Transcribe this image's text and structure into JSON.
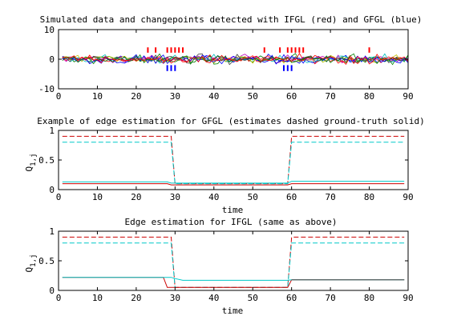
{
  "chart_data": [
    {
      "type": "line",
      "title": "Simulated data and changepoints detected with IFGL (red) and GFGL (blue)",
      "xlabel": "",
      "ylabel": "",
      "xlim": [
        0,
        90
      ],
      "ylim": [
        -10,
        10
      ],
      "xticks": [
        0,
        10,
        20,
        30,
        40,
        50,
        60,
        70,
        80,
        90
      ],
      "yticks": [
        -10,
        0,
        10
      ],
      "ytick_labels": [
        "-10",
        "0",
        "10"
      ],
      "n_noise_series": 10,
      "series_colors": [
        "#0000ff",
        "#008000",
        "#ff0000",
        "#00bfbf",
        "#bf00bf",
        "#bfbf00",
        "#404040",
        "#0000ff",
        "#008000",
        "#ff0000"
      ],
      "ifgl_changepoints": [
        23,
        25,
        28,
        29,
        30,
        31,
        32,
        53,
        57,
        59,
        60,
        61,
        62,
        63,
        80
      ],
      "gfgl_changepoints": [
        28,
        29,
        30,
        58,
        59,
        60
      ],
      "ifgl_color": "#ff0000",
      "gfgl_color": "#0000ff"
    },
    {
      "type": "line",
      "title": "Example of edge estimation for GFGL (estimates dashed ground-truth solid)",
      "xlabel": "time",
      "ylabel": "Q_{1,j}",
      "ylabel_main": "Q",
      "ylabel_sub": "1,j",
      "xlim": [
        0,
        90
      ],
      "ylim": [
        0,
        1
      ],
      "xticks": [
        0,
        10,
        20,
        30,
        40,
        50,
        60,
        70,
        80,
        90
      ],
      "yticks": [
        0,
        0.5,
        1
      ],
      "ytick_labels": [
        "0",
        "0.5",
        "1"
      ],
      "series": [
        {
          "style": "dashed",
          "color": "#cc0000",
          "x": [
            1,
            29,
            30,
            59,
            60,
            89
          ],
          "y": [
            0.9,
            0.9,
            0.1,
            0.1,
            0.9,
            0.9
          ]
        },
        {
          "style": "dashed",
          "color": "#00c8c8",
          "x": [
            1,
            29,
            30,
            59,
            60,
            89
          ],
          "y": [
            0.8,
            0.8,
            0.1,
            0.1,
            0.8,
            0.8
          ]
        },
        {
          "style": "solid",
          "color": "#cc0000",
          "x": [
            1,
            28,
            29,
            30,
            59,
            60,
            89
          ],
          "y": [
            0.1,
            0.1,
            0.08,
            0.08,
            0.08,
            0.1,
            0.1
          ]
        },
        {
          "style": "solid",
          "color": "#00c8c8",
          "x": [
            1,
            28,
            29,
            30,
            59,
            60,
            89
          ],
          "y": [
            0.13,
            0.13,
            0.11,
            0.11,
            0.11,
            0.14,
            0.14
          ]
        }
      ]
    },
    {
      "type": "line",
      "title": "Edge estimation for IFGL (same as above)",
      "xlabel": "time",
      "ylabel": "Q_{1,j}",
      "ylabel_main": "Q",
      "ylabel_sub": "1,j",
      "xlim": [
        0,
        90
      ],
      "ylim": [
        0,
        1
      ],
      "xticks": [
        0,
        10,
        20,
        30,
        40,
        50,
        60,
        70,
        80,
        90
      ],
      "yticks": [
        0,
        0.5,
        1
      ],
      "ytick_labels": [
        "0",
        "0.5",
        "1"
      ],
      "series": [
        {
          "style": "dashed",
          "color": "#cc0000",
          "x": [
            1,
            29,
            30,
            59,
            60,
            89
          ],
          "y": [
            0.9,
            0.9,
            0.05,
            0.05,
            0.9,
            0.9
          ]
        },
        {
          "style": "dashed",
          "color": "#00c8c8",
          "x": [
            1,
            29,
            30,
            59,
            60,
            89
          ],
          "y": [
            0.8,
            0.8,
            0.05,
            0.05,
            0.8,
            0.8
          ]
        },
        {
          "style": "solid",
          "color": "#cc0000",
          "x": [
            1,
            27,
            28,
            29,
            59,
            60,
            89
          ],
          "y": [
            0.22,
            0.22,
            0.05,
            0.05,
            0.05,
            0.18,
            0.18
          ]
        },
        {
          "style": "solid",
          "color": "#00c8c8",
          "x": [
            1,
            29,
            30,
            32,
            59,
            60,
            89
          ],
          "y": [
            0.22,
            0.22,
            0.2,
            0.17,
            0.17,
            0.18,
            0.18
          ]
        },
        {
          "style": "solid",
          "color": "#555555",
          "x": [
            60,
            89
          ],
          "y": [
            0.18,
            0.18
          ]
        }
      ]
    }
  ]
}
